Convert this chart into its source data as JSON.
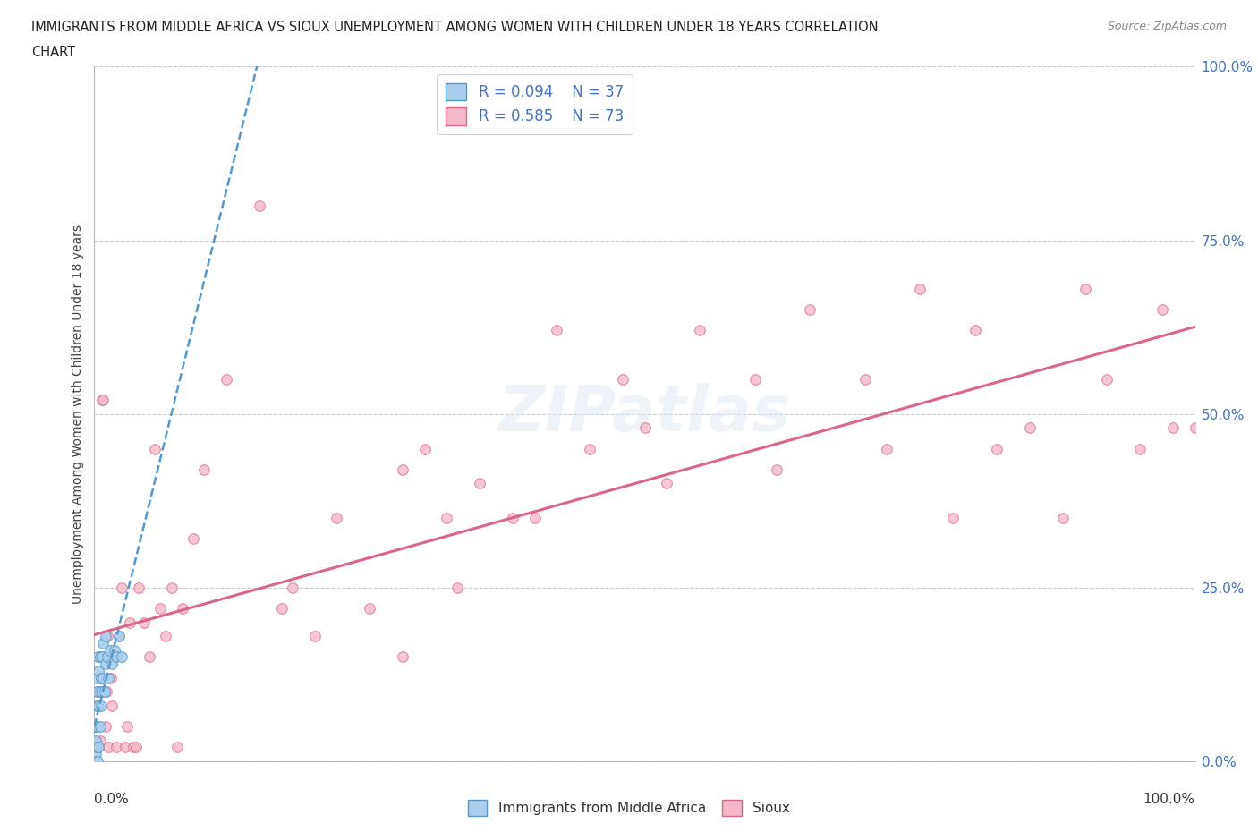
{
  "title_line1": "IMMIGRANTS FROM MIDDLE AFRICA VS SIOUX UNEMPLOYMENT AMONG WOMEN WITH CHILDREN UNDER 18 YEARS CORRELATION",
  "title_line2": "CHART",
  "source": "Source: ZipAtlas.com",
  "ylabel": "Unemployment Among Women with Children Under 18 years",
  "r_blue": 0.094,
  "n_blue": 37,
  "r_pink": 0.585,
  "n_pink": 73,
  "legend_label_blue": "Immigrants from Middle Africa",
  "legend_label_pink": "Sioux",
  "blue_color": "#aacfee",
  "pink_color": "#f5b8c8",
  "trend_blue_color": "#5599cc",
  "trend_pink_color": "#dd6688",
  "ytick_labels": [
    "0.0%",
    "25.0%",
    "50.0%",
    "75.0%",
    "100.0%"
  ],
  "ytick_values": [
    0.0,
    0.25,
    0.5,
    0.75,
    1.0
  ],
  "blue_x": [
    0.0,
    0.0,
    0.001,
    0.001,
    0.001,
    0.001,
    0.002,
    0.002,
    0.002,
    0.002,
    0.003,
    0.003,
    0.003,
    0.003,
    0.004,
    0.004,
    0.004,
    0.005,
    0.005,
    0.005,
    0.006,
    0.006,
    0.007,
    0.007,
    0.008,
    0.008,
    0.009,
    0.01,
    0.01,
    0.012,
    0.013,
    0.014,
    0.016,
    0.018,
    0.02,
    0.022,
    0.025
  ],
  "blue_y": [
    0.0,
    0.02,
    0.0,
    0.01,
    0.03,
    0.05,
    0.0,
    0.02,
    0.08,
    0.12,
    0.0,
    0.05,
    0.1,
    0.15,
    0.02,
    0.08,
    0.13,
    0.05,
    0.1,
    0.15,
    0.08,
    0.12,
    0.1,
    0.15,
    0.12,
    0.17,
    0.1,
    0.14,
    0.18,
    0.15,
    0.12,
    0.16,
    0.14,
    0.16,
    0.15,
    0.18,
    0.15
  ],
  "pink_x": [
    0.001,
    0.002,
    0.003,
    0.004,
    0.005,
    0.006,
    0.007,
    0.008,
    0.009,
    0.01,
    0.011,
    0.012,
    0.013,
    0.015,
    0.016,
    0.018,
    0.02,
    0.022,
    0.025,
    0.028,
    0.03,
    0.032,
    0.035,
    0.038,
    0.04,
    0.045,
    0.05,
    0.055,
    0.06,
    0.065,
    0.07,
    0.075,
    0.08,
    0.09,
    0.1,
    0.12,
    0.15,
    0.18,
    0.2,
    0.25,
    0.28,
    0.3,
    0.32,
    0.35,
    0.4,
    0.45,
    0.5,
    0.55,
    0.6,
    0.62,
    0.65,
    0.7,
    0.72,
    0.75,
    0.78,
    0.8,
    0.82,
    0.85,
    0.88,
    0.9,
    0.92,
    0.95,
    0.97,
    0.98,
    1.0,
    0.52,
    0.48,
    0.42,
    0.38,
    0.33,
    0.28,
    0.22,
    0.17
  ],
  "pink_y": [
    0.05,
    0.1,
    0.02,
    0.08,
    0.03,
    0.12,
    0.52,
    0.52,
    0.15,
    0.05,
    0.1,
    0.18,
    0.02,
    0.12,
    0.08,
    0.15,
    0.02,
    0.18,
    0.25,
    0.02,
    0.05,
    0.2,
    0.02,
    0.02,
    0.25,
    0.2,
    0.15,
    0.45,
    0.22,
    0.18,
    0.25,
    0.02,
    0.22,
    0.32,
    0.42,
    0.55,
    0.8,
    0.25,
    0.18,
    0.22,
    0.15,
    0.45,
    0.35,
    0.4,
    0.35,
    0.45,
    0.48,
    0.62,
    0.55,
    0.42,
    0.65,
    0.55,
    0.45,
    0.68,
    0.35,
    0.62,
    0.45,
    0.48,
    0.35,
    0.68,
    0.55,
    0.45,
    0.65,
    0.48,
    0.48,
    0.4,
    0.55,
    0.62,
    0.35,
    0.25,
    0.42,
    0.35,
    0.22
  ]
}
